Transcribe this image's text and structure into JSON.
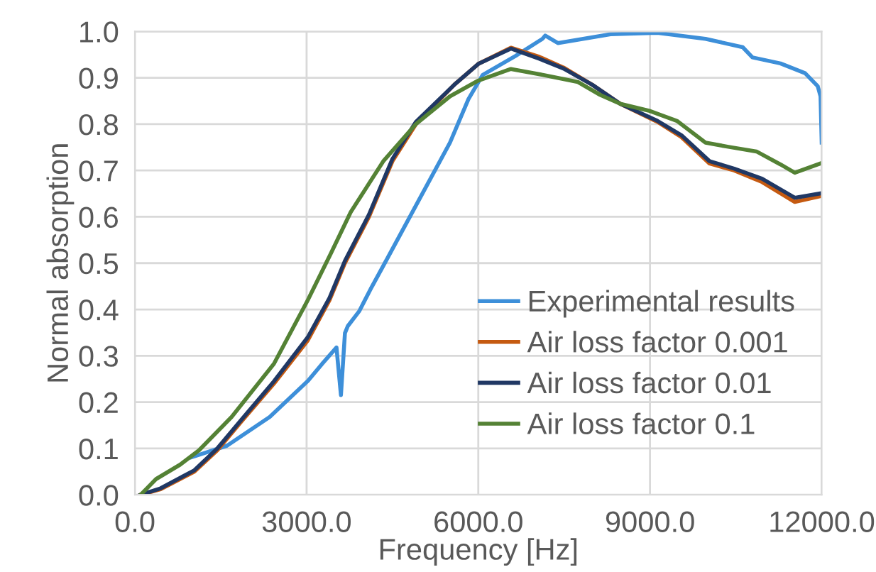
{
  "chart_data": {
    "type": "line",
    "xlabel": "Frequency [Hz]",
    "ylabel": "Normal absorption",
    "xlim": [
      0,
      12000
    ],
    "ylim": [
      0,
      1
    ],
    "xticks": [
      {
        "value": 0,
        "label": "0.0"
      },
      {
        "value": 3000,
        "label": "3000.0"
      },
      {
        "value": 6000,
        "label": "6000.0"
      },
      {
        "value": 9000,
        "label": "9000.0"
      },
      {
        "value": 12000,
        "label": "12000.0"
      }
    ],
    "yticks": [
      {
        "value": 0,
        "label": "0.0"
      },
      {
        "value": 0.1,
        "label": "0.1"
      },
      {
        "value": 0.2,
        "label": "0.2"
      },
      {
        "value": 0.3,
        "label": "0.3"
      },
      {
        "value": 0.4,
        "label": "0.4"
      },
      {
        "value": 0.5,
        "label": "0.5"
      },
      {
        "value": 0.6,
        "label": "0.6"
      },
      {
        "value": 0.7,
        "label": "0.7"
      },
      {
        "value": 0.8,
        "label": "0.8"
      },
      {
        "value": 0.9,
        "label": "0.9"
      },
      {
        "value": 1.0,
        "label": "1.0"
      }
    ],
    "grid": true,
    "legend": "right",
    "marker": "none",
    "line_style": "solid",
    "series": [
      {
        "name": "Experimental results",
        "color": "#3d8fd9",
        "x": [
          990,
          1610,
          2356,
          3025,
          3274,
          3522,
          3600,
          3670,
          3720,
          3918,
          4140,
          4414,
          5505,
          5828,
          6076,
          6650,
          7120,
          7170,
          7390,
          8310,
          9130,
          9970,
          10620,
          10790,
          11280,
          11710,
          11930,
          11980,
          12000
        ],
        "values": [
          0.081,
          0.106,
          0.168,
          0.246,
          0.283,
          0.318,
          0.215,
          0.349,
          0.364,
          0.396,
          0.449,
          0.511,
          0.76,
          0.854,
          0.906,
          0.947,
          0.984,
          0.991,
          0.975,
          0.994,
          0.997,
          0.984,
          0.966,
          0.944,
          0.931,
          0.91,
          0.882,
          0.86,
          0.76
        ]
      },
      {
        "name": "Air loss factor 0.001",
        "color": "#c55a11",
        "x": [
          100,
          450,
          1040,
          1440,
          1860,
          2430,
          3020,
          3400,
          3670,
          4090,
          4500,
          4910,
          5580,
          6000,
          6570,
          7070,
          7490,
          7990,
          8480,
          9130,
          9550,
          10040,
          10470,
          10960,
          11530,
          12000
        ],
        "values": [
          0,
          0.012,
          0.05,
          0.096,
          0.158,
          0.24,
          0.333,
          0.42,
          0.5,
          0.6,
          0.72,
          0.8,
          0.885,
          0.93,
          0.965,
          0.945,
          0.922,
          0.885,
          0.844,
          0.805,
          0.772,
          0.715,
          0.7,
          0.675,
          0.632,
          0.645
        ]
      },
      {
        "name": "Air loss factor 0.01",
        "color": "#203864",
        "x": [
          100,
          450,
          1040,
          1440,
          1860,
          2430,
          3020,
          3400,
          3670,
          4090,
          4500,
          4910,
          5580,
          6000,
          6570,
          7070,
          7490,
          7990,
          8480,
          9130,
          9550,
          10040,
          10470,
          10960,
          11530,
          12000
        ],
        "values": [
          0,
          0.014,
          0.053,
          0.1,
          0.162,
          0.245,
          0.34,
          0.425,
          0.505,
          0.605,
          0.725,
          0.805,
          0.885,
          0.93,
          0.963,
          0.941,
          0.92,
          0.885,
          0.844,
          0.807,
          0.776,
          0.72,
          0.704,
          0.682,
          0.641,
          0.651
        ]
      },
      {
        "name": "Air loss factor 0.1",
        "color": "#548235",
        "x": [
          100,
          370,
          790,
          1120,
          1690,
          2430,
          3020,
          3420,
          3770,
          4340,
          4910,
          5505,
          6000,
          6570,
          7140,
          7740,
          8130,
          8480,
          8980,
          9470,
          9970,
          10370,
          10860,
          11280,
          11530,
          12000
        ],
        "values": [
          0,
          0.034,
          0.065,
          0.096,
          0.168,
          0.283,
          0.42,
          0.52,
          0.61,
          0.72,
          0.8,
          0.86,
          0.894,
          0.919,
          0.906,
          0.891,
          0.863,
          0.844,
          0.829,
          0.807,
          0.76,
          0.751,
          0.741,
          0.713,
          0.695,
          0.716
        ]
      }
    ]
  }
}
